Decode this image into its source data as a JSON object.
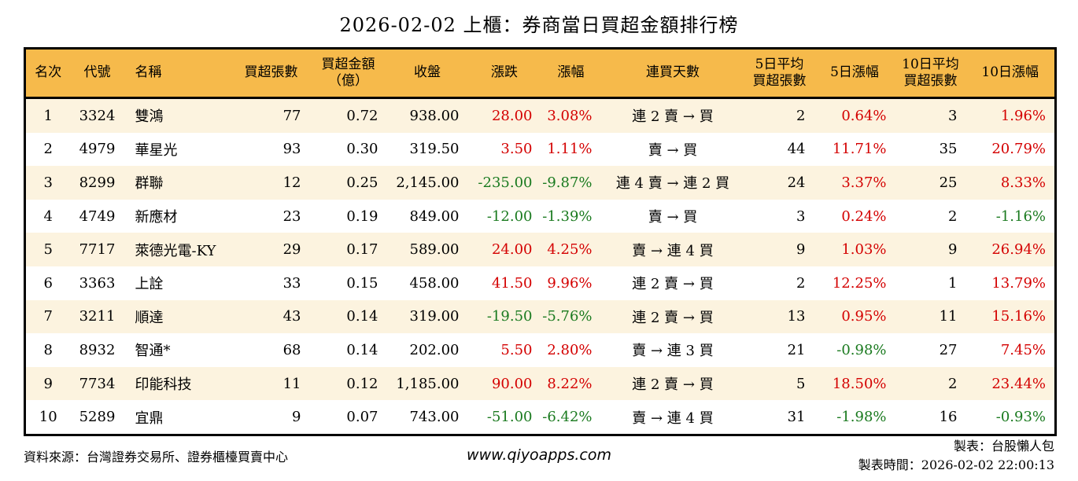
{
  "title": "2026-02-02 上櫃：券商當日買超金額排行榜",
  "colors": {
    "header_bg": "#f6ba4b",
    "stripe_bg": "#fcf3df",
    "up_red": "#d40000",
    "down_green": "#1a7a1f"
  },
  "table": {
    "headers": {
      "rank": "名次",
      "code": "代號",
      "name": "名稱",
      "lots": "買超張數",
      "amount": "買超金額\n（億）",
      "close": "收盤",
      "chg": "漲跌",
      "chg_pct": "漲幅",
      "streak": "連買天數",
      "avg5": "5日平均\n買超張數",
      "pct5": "5日漲幅",
      "avg10": "10日平均\n買超張數",
      "pct10": "10日漲幅"
    },
    "rows": [
      {
        "rank": "1",
        "code": "3324",
        "name": "雙鴻",
        "lots": "77",
        "amount": "0.72",
        "close": "938.00",
        "chg": "28.00",
        "chg_pct": "3.08%",
        "streak": "連 2 賣 → 買",
        "avg5": "2",
        "pct5": "0.64%",
        "avg10": "3",
        "pct10": "1.96%"
      },
      {
        "rank": "2",
        "code": "4979",
        "name": "華星光",
        "lots": "93",
        "amount": "0.30",
        "close": "319.50",
        "chg": "3.50",
        "chg_pct": "1.11%",
        "streak": "賣 → 買",
        "avg5": "44",
        "pct5": "11.71%",
        "avg10": "35",
        "pct10": "20.79%"
      },
      {
        "rank": "3",
        "code": "8299",
        "name": "群聯",
        "lots": "12",
        "amount": "0.25",
        "close": "2,145.00",
        "chg": "-235.00",
        "chg_pct": "-9.87%",
        "streak": "連 4 賣 → 連 2 買",
        "avg5": "24",
        "pct5": "3.37%",
        "avg10": "25",
        "pct10": "8.33%"
      },
      {
        "rank": "4",
        "code": "4749",
        "name": "新應材",
        "lots": "23",
        "amount": "0.19",
        "close": "849.00",
        "chg": "-12.00",
        "chg_pct": "-1.39%",
        "streak": "賣 → 買",
        "avg5": "3",
        "pct5": "0.24%",
        "avg10": "2",
        "pct10": "-1.16%"
      },
      {
        "rank": "5",
        "code": "7717",
        "name": "萊德光電-KY",
        "lots": "29",
        "amount": "0.17",
        "close": "589.00",
        "chg": "24.00",
        "chg_pct": "4.25%",
        "streak": "賣 → 連 4 買",
        "avg5": "9",
        "pct5": "1.03%",
        "avg10": "9",
        "pct10": "26.94%"
      },
      {
        "rank": "6",
        "code": "3363",
        "name": "上詮",
        "lots": "33",
        "amount": "0.15",
        "close": "458.00",
        "chg": "41.50",
        "chg_pct": "9.96%",
        "streak": "連 2 賣 → 買",
        "avg5": "2",
        "pct5": "12.25%",
        "avg10": "1",
        "pct10": "13.79%"
      },
      {
        "rank": "7",
        "code": "3211",
        "name": "順達",
        "lots": "43",
        "amount": "0.14",
        "close": "319.00",
        "chg": "-19.50",
        "chg_pct": "-5.76%",
        "streak": "連 2 賣 → 買",
        "avg5": "13",
        "pct5": "0.95%",
        "avg10": "11",
        "pct10": "15.16%"
      },
      {
        "rank": "8",
        "code": "8932",
        "name": "智通*",
        "lots": "68",
        "amount": "0.14",
        "close": "202.00",
        "chg": "5.50",
        "chg_pct": "2.80%",
        "streak": "賣 → 連 3 買",
        "avg5": "21",
        "pct5": "-0.98%",
        "avg10": "27",
        "pct10": "7.45%"
      },
      {
        "rank": "9",
        "code": "7734",
        "name": "印能科技",
        "lots": "11",
        "amount": "0.12",
        "close": "1,185.00",
        "chg": "90.00",
        "chg_pct": "8.22%",
        "streak": "連 2 賣 → 買",
        "avg5": "5",
        "pct5": "18.50%",
        "avg10": "2",
        "pct10": "23.44%"
      },
      {
        "rank": "10",
        "code": "5289",
        "name": "宜鼎",
        "lots": "9",
        "amount": "0.07",
        "close": "743.00",
        "chg": "-51.00",
        "chg_pct": "-6.42%",
        "streak": "賣 → 連 4 買",
        "avg5": "31",
        "pct5": "-1.98%",
        "avg10": "16",
        "pct10": "-0.93%"
      }
    ]
  },
  "footer": {
    "source": "資料來源：台灣證券交易所、證券櫃檯買賣中心",
    "website": "www.qiyoapps.com",
    "maker": "製表：台股懶人包",
    "made_time": "製表時間：2026-02-02 22:00:13"
  }
}
